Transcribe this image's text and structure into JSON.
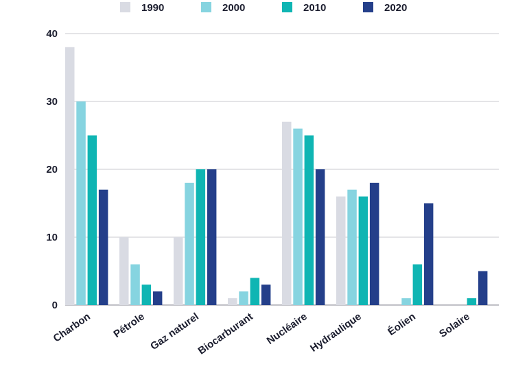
{
  "chart_data": {
    "type": "bar",
    "categories": [
      "Charbon",
      "Pétrole",
      "Gaz naturel",
      "Biocarburant",
      "Nucléaire",
      "Hydraulique",
      "Éolien",
      "Solaire"
    ],
    "series": [
      {
        "name": "1990",
        "color": "#d9dbe3",
        "values": [
          38,
          10,
          10,
          1,
          27,
          16,
          0,
          0
        ]
      },
      {
        "name": "2000",
        "color": "#86d4e0",
        "values": [
          30,
          6,
          18,
          2,
          26,
          17,
          1,
          0
        ]
      },
      {
        "name": "2010",
        "color": "#0fb5b3",
        "values": [
          25,
          3,
          20,
          4,
          25,
          16,
          6,
          1
        ]
      },
      {
        "name": "2020",
        "color": "#243f8a",
        "values": [
          17,
          2,
          20,
          3,
          20,
          18,
          15,
          5
        ]
      }
    ],
    "yticks": [
      "0",
      "10",
      "20",
      "30",
      "40"
    ],
    "ylim": [
      0,
      40
    ],
    "grid": true,
    "legend_position": "top-center",
    "title": "",
    "xlabel": "",
    "ylabel": ""
  }
}
